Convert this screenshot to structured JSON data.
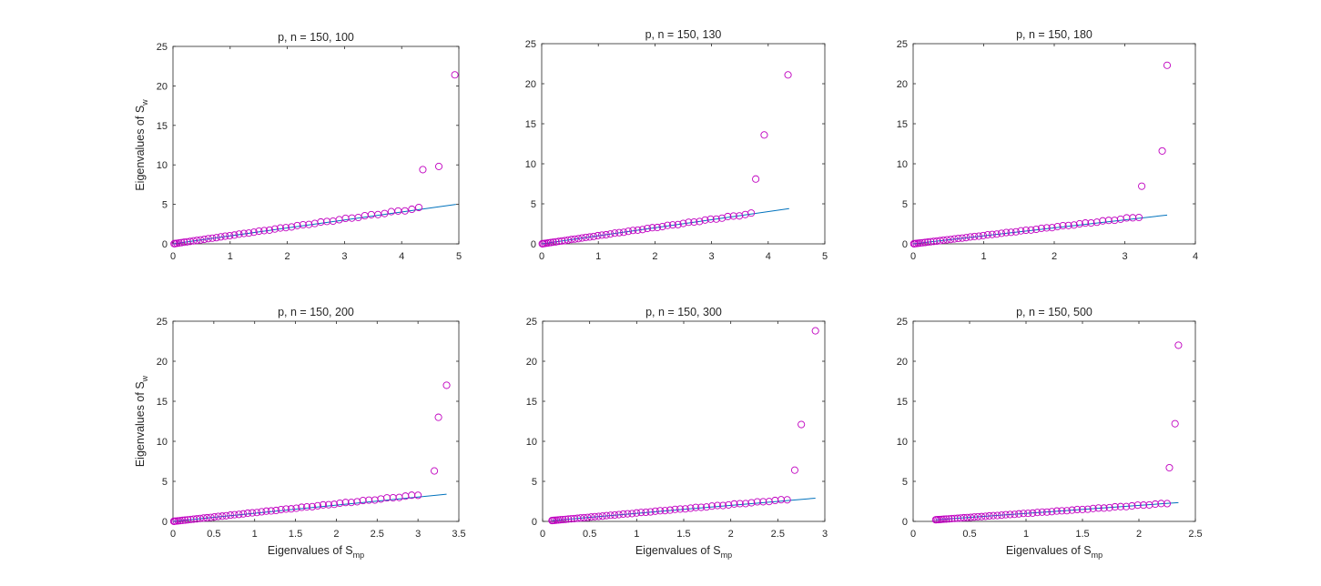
{
  "colors": {
    "marker": "#c000c0",
    "fit_line": "#0072bd",
    "axes": "#262626"
  },
  "chart_data": [
    {
      "type": "scatter",
      "title": "p, n = 150, 100",
      "ylabel": {
        "text": "Eigenvalues of S",
        "sub": "w"
      },
      "xlabel": null,
      "xlim": [
        0,
        5
      ],
      "ylim": [
        0,
        25
      ],
      "xticks": [
        0,
        1,
        2,
        3,
        4,
        5
      ],
      "yticks": [
        0,
        5,
        10,
        15,
        20,
        25
      ],
      "grid": false,
      "fit_line": {
        "x": [
          0,
          4.95
        ],
        "y": [
          0,
          5.0
        ]
      },
      "bulk": {
        "xmin": 0.02,
        "xmax": 4.3,
        "count": 50,
        "slope": 1.05
      },
      "outliers": [
        {
          "x": 4.37,
          "y": 9.4
        },
        {
          "x": 4.65,
          "y": 9.8
        },
        {
          "x": 4.93,
          "y": 21.4
        }
      ]
    },
    {
      "type": "scatter",
      "title": "p, n = 150, 130",
      "ylabel": null,
      "xlabel": null,
      "xlim": [
        0,
        5
      ],
      "ylim": [
        0,
        25
      ],
      "xticks": [
        0,
        1,
        2,
        3,
        4,
        5
      ],
      "yticks": [
        0,
        5,
        10,
        15,
        20,
        25
      ],
      "grid": false,
      "fit_line": {
        "x": [
          0,
          4.37
        ],
        "y": [
          0,
          4.4
        ]
      },
      "bulk": {
        "xmin": 0.01,
        "xmax": 3.7,
        "count": 50,
        "slope": 1.02
      },
      "outliers": [
        {
          "x": 3.78,
          "y": 8.1
        },
        {
          "x": 3.93,
          "y": 13.6
        },
        {
          "x": 4.35,
          "y": 21.1
        }
      ]
    },
    {
      "type": "scatter",
      "title": "p, n = 150, 180",
      "ylabel": null,
      "xlabel": null,
      "xlim": [
        0,
        4
      ],
      "ylim": [
        0,
        25
      ],
      "xticks": [
        0,
        1,
        2,
        3,
        4
      ],
      "yticks": [
        0,
        5,
        10,
        15,
        20,
        25
      ],
      "grid": false,
      "fit_line": {
        "x": [
          0,
          3.6
        ],
        "y": [
          0,
          3.6
        ]
      },
      "bulk": {
        "xmin": 0.01,
        "xmax": 3.2,
        "count": 52,
        "slope": 1.05
      },
      "outliers": [
        {
          "x": 3.24,
          "y": 7.2
        },
        {
          "x": 3.53,
          "y": 11.6
        },
        {
          "x": 3.6,
          "y": 22.3
        }
      ]
    },
    {
      "type": "scatter",
      "title": "p, n = 150, 200",
      "ylabel": {
        "text": "Eigenvalues of S",
        "sub": "w"
      },
      "xlabel": {
        "text": "Eigenvalues of S",
        "sub": "mp"
      },
      "xlim": [
        0,
        3.5
      ],
      "ylim": [
        0,
        25
      ],
      "xticks": [
        0,
        0.5,
        1,
        1.5,
        2,
        2.5,
        3,
        3.5
      ],
      "yticks": [
        0,
        5,
        10,
        15,
        20,
        25
      ],
      "grid": false,
      "fit_line": {
        "x": [
          0,
          3.35
        ],
        "y": [
          0,
          3.4
        ]
      },
      "bulk": {
        "xmin": 0.01,
        "xmax": 3.0,
        "count": 55,
        "slope": 1.1
      },
      "outliers": [
        {
          "x": 3.2,
          "y": 6.3
        },
        {
          "x": 3.25,
          "y": 13.0
        },
        {
          "x": 3.35,
          "y": 17.0
        }
      ]
    },
    {
      "type": "scatter",
      "title": "p, n = 150, 300",
      "ylabel": null,
      "xlabel": {
        "text": "Eigenvalues of S",
        "sub": "mp"
      },
      "xlim": [
        0,
        3
      ],
      "ylim": [
        0,
        25
      ],
      "xticks": [
        0,
        0.5,
        1,
        1.5,
        2,
        2.5,
        3
      ],
      "yticks": [
        0,
        5,
        10,
        15,
        20,
        25
      ],
      "grid": false,
      "fit_line": {
        "x": [
          0.1,
          2.9
        ],
        "y": [
          0.1,
          2.9
        ]
      },
      "bulk": {
        "xmin": 0.1,
        "xmax": 2.6,
        "count": 55,
        "slope": 1.05
      },
      "outliers": [
        {
          "x": 2.68,
          "y": 6.4
        },
        {
          "x": 2.75,
          "y": 12.1
        },
        {
          "x": 2.9,
          "y": 23.8
        }
      ]
    },
    {
      "type": "scatter",
      "title": "p, n = 150, 500",
      "ylabel": null,
      "xlabel": {
        "text": "Eigenvalues of S",
        "sub": "mp"
      },
      "xlim": [
        0,
        2.5
      ],
      "ylim": [
        0,
        25
      ],
      "xticks": [
        0,
        0.5,
        1,
        1.5,
        2,
        2.5
      ],
      "yticks": [
        0,
        5,
        10,
        15,
        20,
        25
      ],
      "grid": false,
      "fit_line": {
        "x": [
          0.2,
          2.35
        ],
        "y": [
          0.2,
          2.35
        ]
      },
      "bulk": {
        "xmin": 0.2,
        "xmax": 2.25,
        "count": 55,
        "slope": 1.0
      },
      "outliers": [
        {
          "x": 2.27,
          "y": 6.7
        },
        {
          "x": 2.32,
          "y": 12.2
        },
        {
          "x": 2.35,
          "y": 22.0
        }
      ]
    }
  ]
}
